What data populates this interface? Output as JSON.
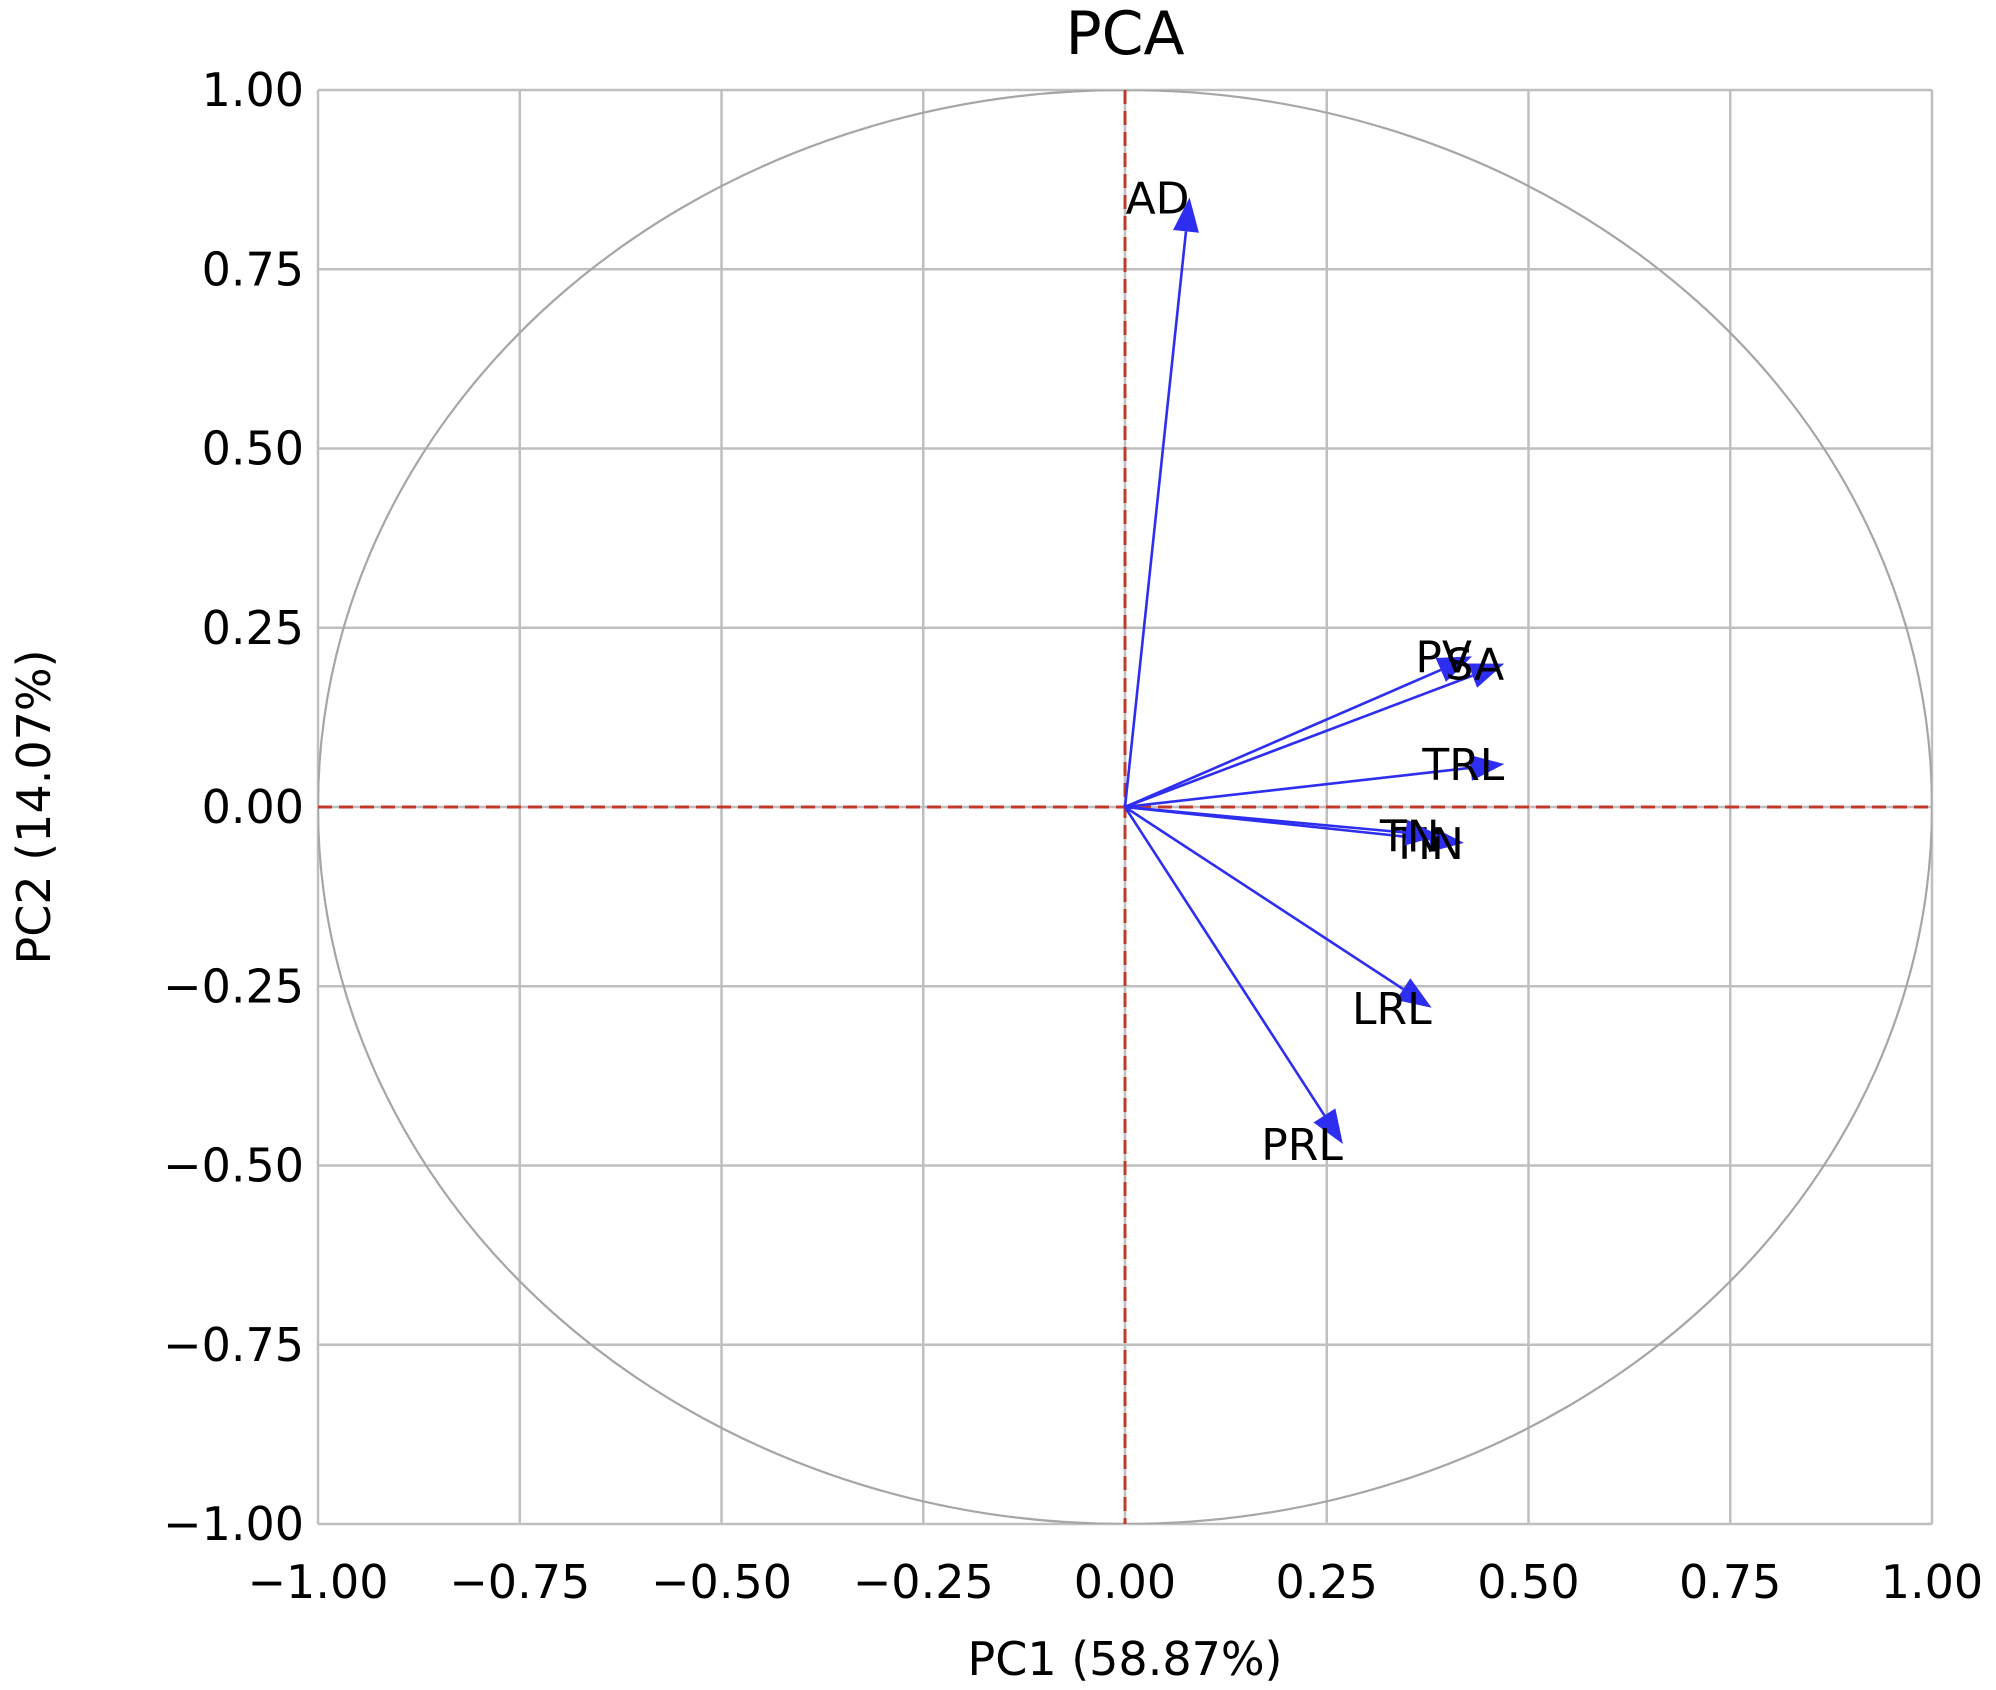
{
  "chart_data": {
    "type": "loading-plot",
    "title": "PCA",
    "xlabel": "PC1 (58.87%)",
    "ylabel": "PC2 (14.07%)",
    "xlim": [
      -1.0,
      1.0
    ],
    "ylim": [
      -1.0,
      1.0
    ],
    "x_ticks": [
      "−1.00",
      "−0.75",
      "−0.50",
      "−0.25",
      "0.00",
      "0.25",
      "0.50",
      "0.75",
      "1.00"
    ],
    "y_ticks": [
      "1.00",
      "0.75",
      "0.50",
      "0.25",
      "0.00",
      "−0.25",
      "−0.50",
      "−0.75",
      "−1.00"
    ],
    "x_tick_values": [
      -1.0,
      -0.75,
      -0.5,
      -0.25,
      0.0,
      0.25,
      0.5,
      0.75,
      1.0
    ],
    "y_tick_values": [
      1.0,
      0.75,
      0.5,
      0.25,
      0.0,
      -0.25,
      -0.5,
      -0.75,
      -1.0
    ],
    "grid": true,
    "unit_circle": true,
    "reference_lines": {
      "x": 0,
      "y": 0,
      "style": "dashed",
      "color": "#c0392b"
    },
    "arrow_color": "#2e2ef0",
    "grid_color": "#bfbfbf",
    "circle_color": "#a6a6a6",
    "vectors": [
      {
        "label": "AD",
        "x": 0.08,
        "y": 0.85
      },
      {
        "label": "PV",
        "x": 0.43,
        "y": 0.21
      },
      {
        "label": "SA",
        "x": 0.47,
        "y": 0.2
      },
      {
        "label": "TRL",
        "x": 0.47,
        "y": 0.06
      },
      {
        "label": "TIN",
        "x": 0.42,
        "y": -0.05
      },
      {
        "label": "TN",
        "x": 0.39,
        "y": -0.04
      },
      {
        "label": "LRL",
        "x": 0.38,
        "y": -0.28
      },
      {
        "label": "PRL",
        "x": 0.27,
        "y": -0.47
      }
    ]
  }
}
